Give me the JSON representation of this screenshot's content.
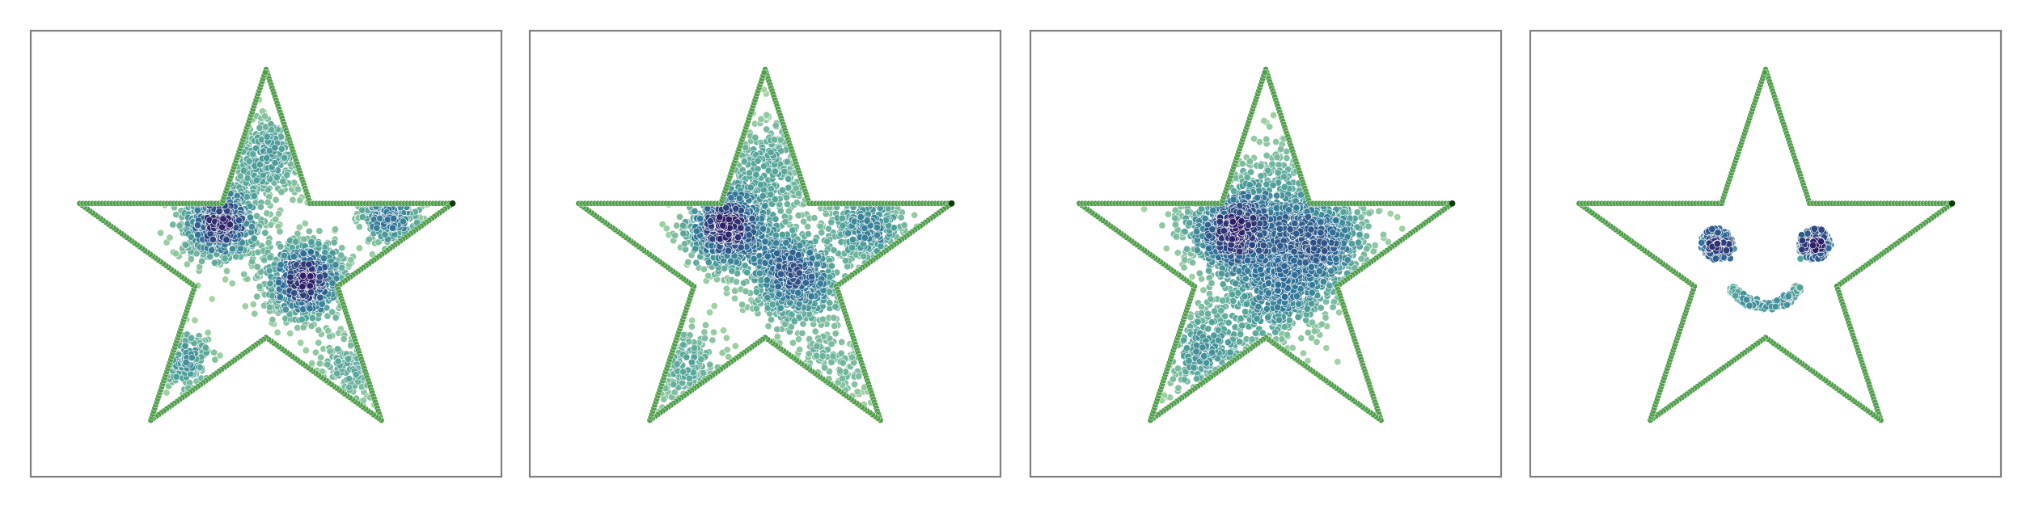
{
  "chart_data": {
    "type": "scatter",
    "title": "",
    "xlabel": "",
    "ylabel": "",
    "grid": false,
    "legend": "none",
    "colormap": "crest",
    "boundary_color": "#4f9e4a",
    "axes_frame_color": "#808080",
    "boundary": {
      "shape": "five-pointed star",
      "vertices": [
        [
          0.0,
          1.0
        ],
        [
          0.2245,
          0.309
        ],
        [
          0.9511,
          0.309
        ],
        [
          0.3633,
          -0.118
        ],
        [
          0.5878,
          -0.809
        ],
        [
          0.0,
          -0.382
        ],
        [
          -0.5878,
          -0.809
        ],
        [
          -0.3633,
          -0.118
        ],
        [
          -0.9511,
          0.309
        ],
        [
          -0.2245,
          0.309
        ]
      ]
    },
    "xlim": [
      -1.2,
      1.2
    ],
    "ylim": [
      -1.1,
      1.2
    ],
    "panels": [
      {
        "name": "panel-1",
        "points": 2600,
        "clusters": [
          {
            "center": [
              -0.24,
              0.22
            ],
            "spread": 0.1,
            "weight": 0.28
          },
          {
            "center": [
              0.2,
              -0.08
            ],
            "spread": 0.1,
            "weight": 0.28
          },
          {
            "center": [
              0.62,
              0.26
            ],
            "spread": 0.07,
            "weight": 0.12
          },
          {
            "center": [
              0.0,
              0.55
            ],
            "spread": 0.12,
            "weight": 0.14
          },
          {
            "center": [
              -0.45,
              -0.5
            ],
            "spread": 0.08,
            "weight": 0.1
          },
          {
            "center": [
              0.45,
              -0.55
            ],
            "spread": 0.1,
            "weight": 0.08
          }
        ]
      },
      {
        "name": "panel-2",
        "points": 2600,
        "clusters": [
          {
            "center": [
              -0.18,
              0.2
            ],
            "spread": 0.11,
            "weight": 0.3
          },
          {
            "center": [
              0.15,
              -0.05
            ],
            "spread": 0.12,
            "weight": 0.26
          },
          {
            "center": [
              0.52,
              0.2
            ],
            "spread": 0.1,
            "weight": 0.14
          },
          {
            "center": [
              0.05,
              0.5
            ],
            "spread": 0.14,
            "weight": 0.12
          },
          {
            "center": [
              -0.42,
              -0.55
            ],
            "spread": 0.12,
            "weight": 0.1
          },
          {
            "center": [
              0.35,
              -0.5
            ],
            "spread": 0.14,
            "weight": 0.08
          }
        ]
      },
      {
        "name": "panel-3",
        "points": 2600,
        "clusters": [
          {
            "center": [
              -0.18,
              0.18
            ],
            "spread": 0.12,
            "weight": 0.28
          },
          {
            "center": [
              0.25,
              0.12
            ],
            "spread": 0.14,
            "weight": 0.26
          },
          {
            "center": [
              0.05,
              -0.12
            ],
            "spread": 0.16,
            "weight": 0.24
          },
          {
            "center": [
              -0.3,
              -0.45
            ],
            "spread": 0.12,
            "weight": 0.12
          },
          {
            "center": [
              0.1,
              0.38
            ],
            "spread": 0.16,
            "weight": 0.1
          }
        ]
      },
      {
        "name": "panel-4",
        "points": 760,
        "smiley": {
          "left_eye": [
            -0.25,
            0.1
          ],
          "right_eye": [
            0.25,
            0.1
          ],
          "eye_radius": 0.075,
          "mouth_center": [
            0.0,
            -0.02
          ],
          "mouth_radius": 0.2,
          "mouth_arc_degrees": [
            210,
            330
          ]
        }
      }
    ]
  }
}
